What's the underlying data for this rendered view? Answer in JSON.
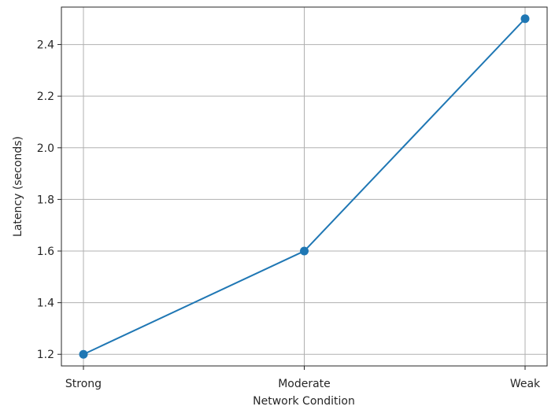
{
  "chart_data": {
    "type": "line",
    "categories": [
      "Strong",
      "Moderate",
      "Weak"
    ],
    "series": [
      {
        "values": [
          1.2,
          1.6,
          2.5
        ]
      }
    ],
    "xlabel": "Network Condition",
    "ylabel": "Latency (seconds)",
    "ylim": [
      1.155,
      2.545
    ],
    "yticks": [
      1.2,
      1.4,
      1.6,
      1.8,
      2.0,
      2.2,
      2.4
    ],
    "ytick_labels": [
      "1.2",
      "1.4",
      "1.6",
      "1.8",
      "2.0",
      "2.2",
      "2.4"
    ],
    "grid": true,
    "markers": "circle",
    "colors": {
      "line": "#1f77b4",
      "grid": "#b0b0b0",
      "axis": "#262626"
    }
  }
}
